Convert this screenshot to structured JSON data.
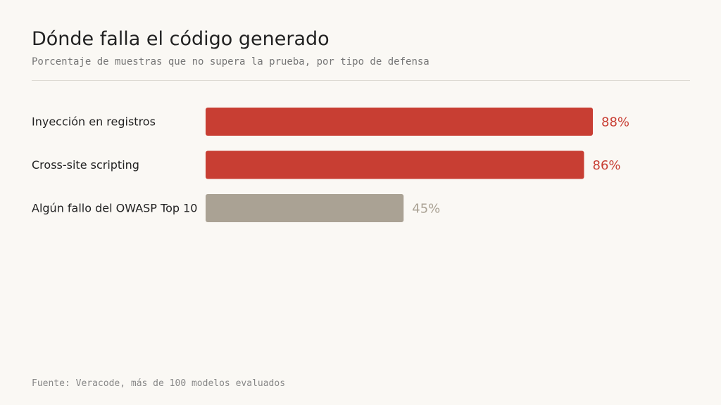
{
  "title": "Dónde falla el código generado",
  "subtitle": "Porcentaje de muestras que no supera la prueba, por tipo de defensa",
  "source": "Fuente: Veracode, más de 100 modelos evaluados",
  "chart_data": {
    "type": "bar",
    "orientation": "horizontal",
    "categories": [
      "Inyección en registros",
      "Cross-site scripting",
      "Algún fallo del OWASP Top 10"
    ],
    "values": [
      88,
      86,
      45
    ],
    "value_labels": [
      "88%",
      "86%",
      "45%"
    ],
    "unit": "%",
    "xlim": [
      0,
      100
    ],
    "grid": false,
    "legend": "none",
    "colors": [
      "#c83e33",
      "#c83e33",
      "#aaa294"
    ],
    "label_colors": [
      "#c83e33",
      "#c83e33",
      "#aaa294"
    ]
  }
}
